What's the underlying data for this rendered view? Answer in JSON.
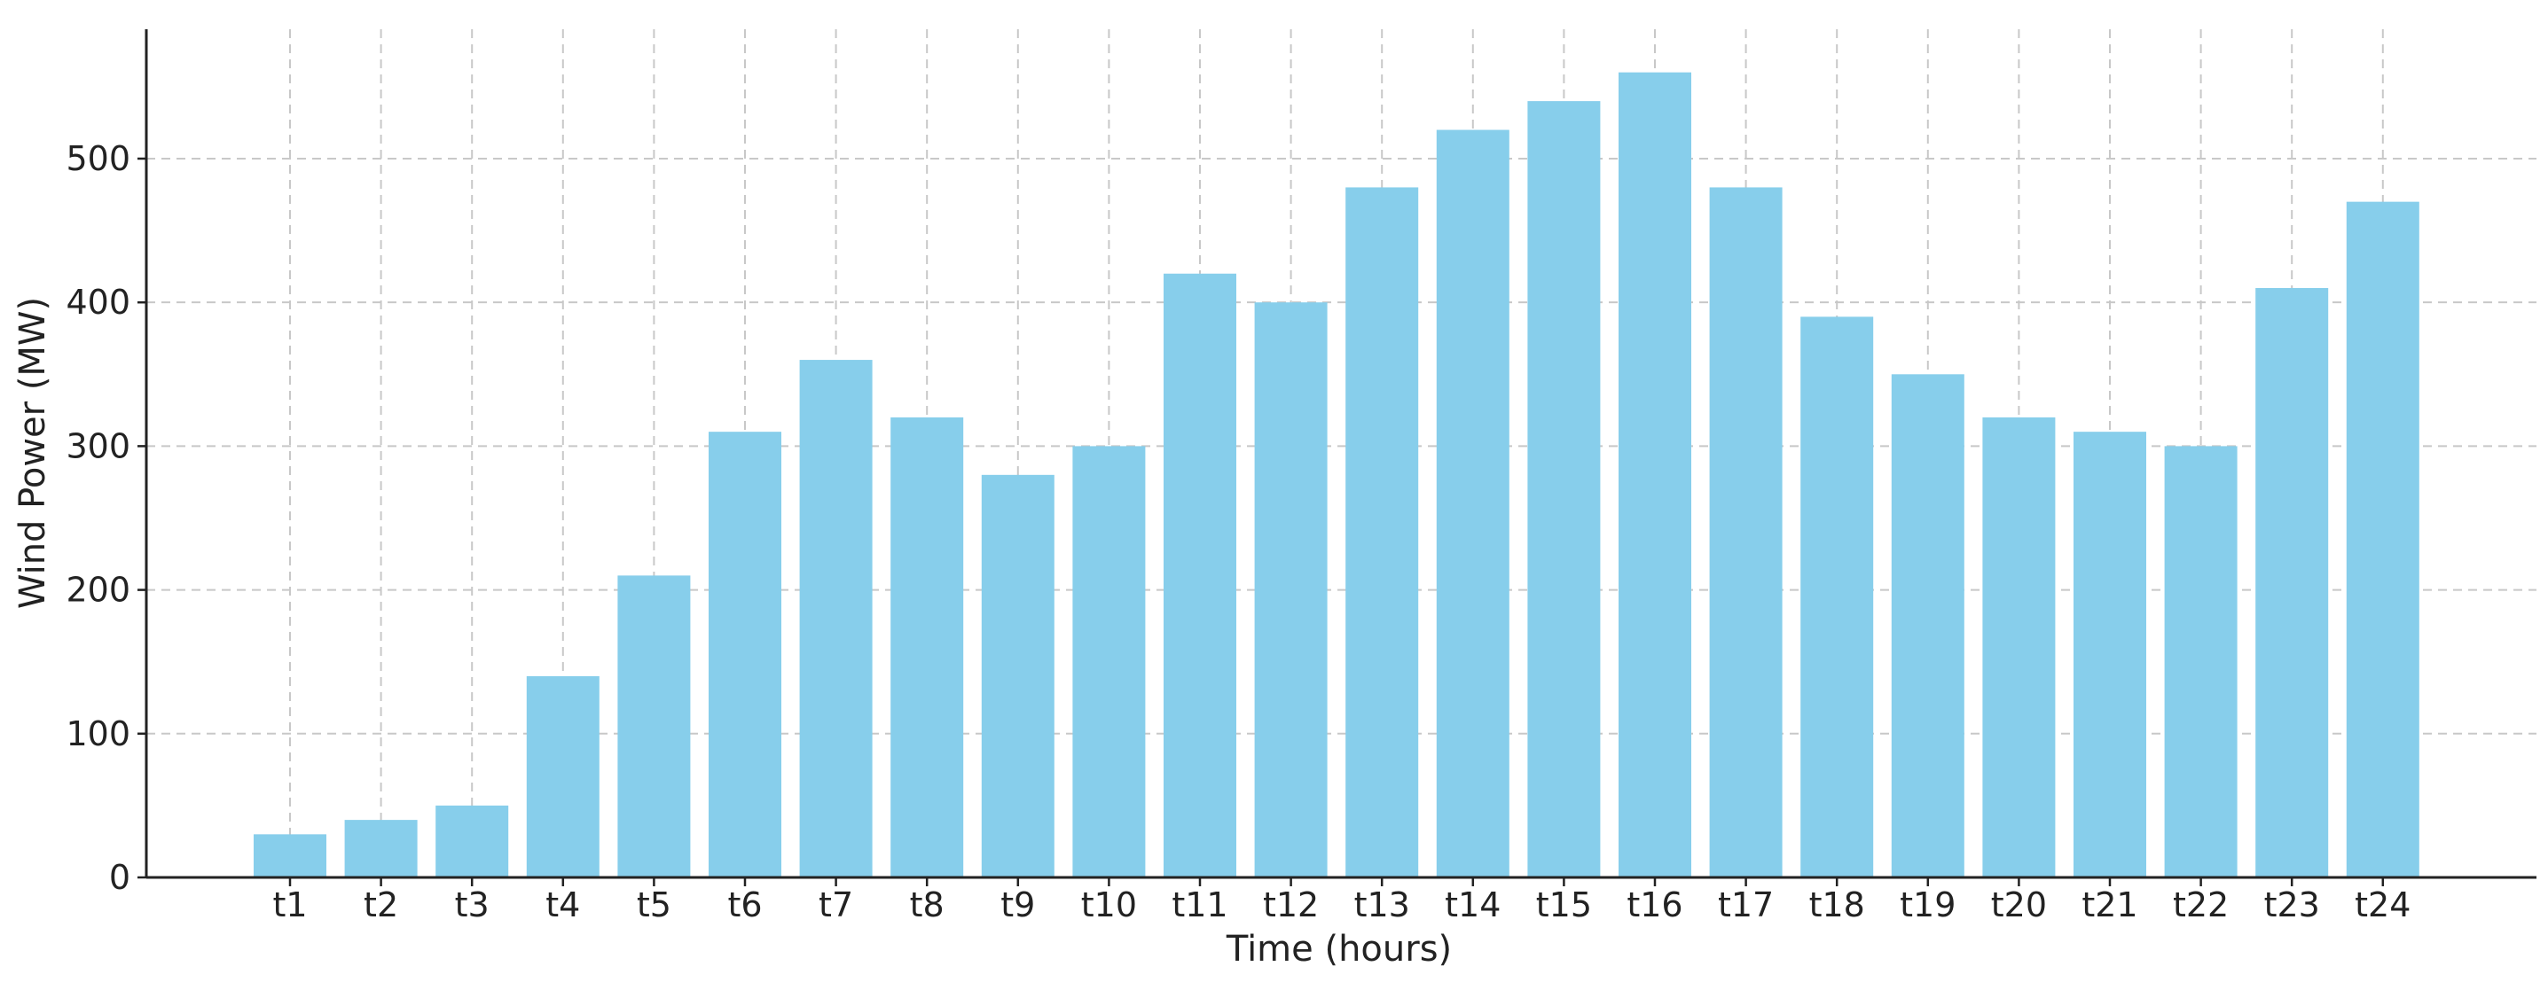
{
  "chart_data": {
    "type": "bar",
    "title": "",
    "xlabel": "Time (hours)",
    "ylabel": "Wind Power (MW)",
    "categories": [
      "t1",
      "t2",
      "t3",
      "t4",
      "t5",
      "t6",
      "t7",
      "t8",
      "t9",
      "t10",
      "t11",
      "t12",
      "t13",
      "t14",
      "t15",
      "t16",
      "t17",
      "t18",
      "t19",
      "t20",
      "t21",
      "t22",
      "t23",
      "t24"
    ],
    "values": [
      30,
      40,
      50,
      140,
      210,
      310,
      360,
      320,
      280,
      300,
      420,
      400,
      480,
      520,
      540,
      560,
      480,
      390,
      350,
      320,
      310,
      300,
      410,
      470
    ],
    "ylim": [
      0,
      590
    ],
    "yticks": [
      0,
      100,
      200,
      300,
      400,
      500
    ],
    "grid": true,
    "bar_color": "#87ceeb"
  }
}
